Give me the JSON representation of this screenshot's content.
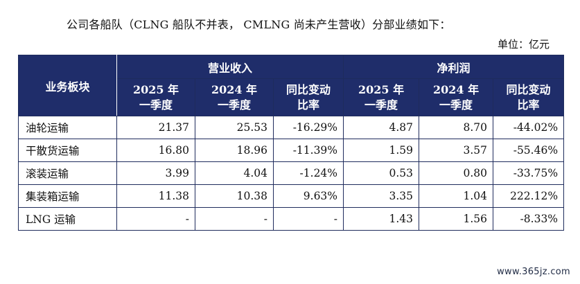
{
  "intro_text": "公司各船队（CLNG 船队不并表， CMLNG 尚未产生营收）分部业绩如下：",
  "unit_text": "单位：亿元",
  "table": {
    "corner_header": "业务板块",
    "groups": [
      "营业收入",
      "净利润"
    ],
    "subheaders": [
      [
        "2025 年",
        "一季度"
      ],
      [
        "2024 年",
        "一季度"
      ],
      [
        "同比变动",
        "比率"
      ],
      [
        "2025 年",
        "一季度"
      ],
      [
        "2024 年",
        "一季度"
      ],
      [
        "同比变动",
        "比率"
      ]
    ],
    "rows": [
      {
        "name": "油轮运输",
        "values": [
          "21.37",
          "25.53",
          "-16.29%",
          "4.87",
          "8.70",
          "-44.02%"
        ]
      },
      {
        "name": "干散货运输",
        "values": [
          "16.80",
          "18.96",
          "-11.39%",
          "1.59",
          "3.57",
          "-55.46%"
        ]
      },
      {
        "name": "滚装运输",
        "values": [
          "3.99",
          "4.04",
          "-1.24%",
          "0.53",
          "0.80",
          "-33.75%"
        ]
      },
      {
        "name": "集装箱运输",
        "values": [
          "11.38",
          "10.38",
          "9.63%",
          "3.35",
          "1.04",
          "222.12%"
        ]
      },
      {
        "name": "LNG 运输",
        "values": [
          "-",
          "-",
          "-",
          "1.43",
          "1.56",
          "-8.33%"
        ]
      }
    ]
  },
  "watermark": "www.365jz.com",
  "colors": {
    "header_bg": "#1f2d6a",
    "header_text": "#ffffff",
    "border": "#1e2b5c"
  }
}
